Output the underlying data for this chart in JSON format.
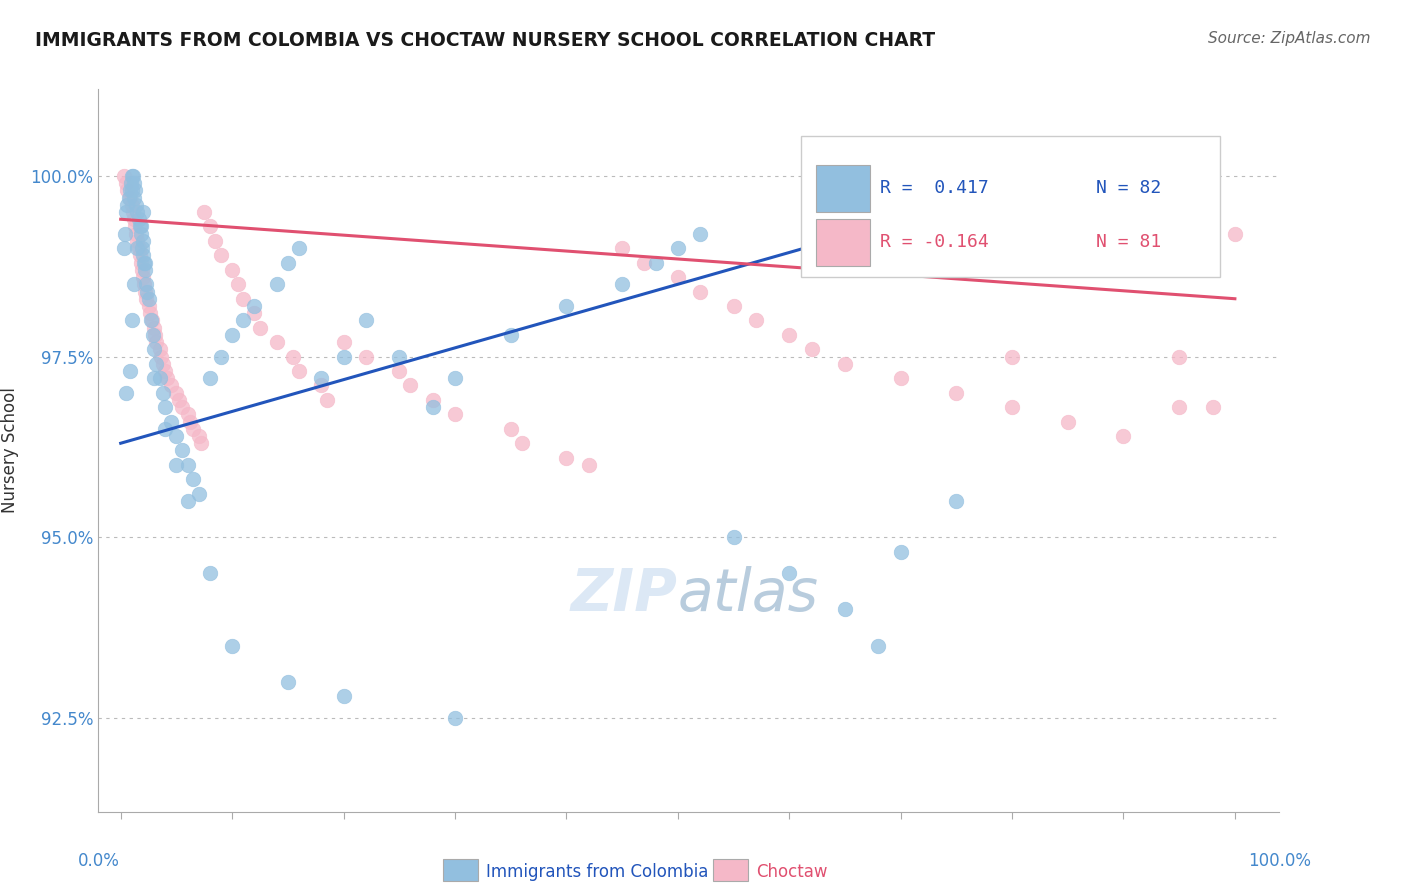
{
  "title": "IMMIGRANTS FROM COLOMBIA VS CHOCTAW NURSERY SCHOOL CORRELATION CHART",
  "source": "Source: ZipAtlas.com",
  "ylabel": "Nursery School",
  "ytick_labels": [
    "92.5%",
    "95.0%",
    "97.5%",
    "100.0%"
  ],
  "ytick_values": [
    92.5,
    95.0,
    97.5,
    100.0
  ],
  "ymin": 91.2,
  "ymax": 101.2,
  "xmin": -2.0,
  "xmax": 104.0,
  "legend_r1": "R =  0.417",
  "legend_n1": "N = 82",
  "legend_r2": "R = -0.164",
  "legend_n2": "N = 81",
  "blue_color": "#92bfdf",
  "pink_color": "#f5b8c8",
  "blue_line_color": "#2255bb",
  "pink_line_color": "#e05070",
  "title_color": "#1a1a1a",
  "axis_label_color": "#4488cc",
  "watermark_color": "#dce8f5",
  "background_color": "#ffffff",
  "blue_scatter": {
    "x": [
      0.3,
      0.4,
      0.5,
      0.6,
      0.7,
      0.8,
      0.9,
      1.0,
      1.0,
      1.1,
      1.2,
      1.2,
      1.3,
      1.4,
      1.5,
      1.6,
      1.7,
      1.8,
      1.9,
      2.0,
      2.0,
      2.1,
      2.2,
      2.3,
      2.4,
      2.5,
      2.7,
      2.9,
      3.0,
      3.2,
      3.5,
      3.8,
      4.0,
      4.5,
      5.0,
      5.5,
      6.0,
      6.5,
      7.0,
      8.0,
      9.0,
      10.0,
      11.0,
      12.0,
      14.0,
      15.0,
      16.0,
      18.0,
      20.0,
      22.0,
      25.0,
      28.0,
      30.0,
      35.0,
      40.0,
      45.0,
      48.0,
      50.0,
      52.0,
      55.0,
      60.0,
      65.0,
      68.0,
      70.0,
      75.0,
      0.5,
      0.8,
      1.0,
      1.2,
      1.5,
      1.8,
      2.0,
      2.2,
      3.0,
      4.0,
      5.0,
      6.0,
      8.0,
      10.0,
      15.0,
      20.0,
      30.0
    ],
    "y": [
      99.0,
      99.2,
      99.5,
      99.6,
      99.7,
      99.8,
      99.9,
      100.0,
      99.8,
      100.0,
      99.9,
      99.7,
      99.8,
      99.6,
      99.5,
      99.4,
      99.3,
      99.2,
      99.0,
      98.9,
      99.1,
      98.8,
      98.7,
      98.5,
      98.4,
      98.3,
      98.0,
      97.8,
      97.6,
      97.4,
      97.2,
      97.0,
      96.8,
      96.6,
      96.4,
      96.2,
      96.0,
      95.8,
      95.6,
      97.2,
      97.5,
      97.8,
      98.0,
      98.2,
      98.5,
      98.8,
      99.0,
      97.2,
      97.5,
      98.0,
      97.5,
      96.8,
      97.2,
      97.8,
      98.2,
      98.5,
      98.8,
      99.0,
      99.2,
      95.0,
      94.5,
      94.0,
      93.5,
      94.8,
      95.5,
      97.0,
      97.3,
      98.0,
      98.5,
      99.0,
      99.3,
      99.5,
      98.8,
      97.2,
      96.5,
      96.0,
      95.5,
      94.5,
      93.5,
      93.0,
      92.8,
      92.5
    ]
  },
  "pink_scatter": {
    "x": [
      0.3,
      0.5,
      0.6,
      0.8,
      1.0,
      1.1,
      1.2,
      1.3,
      1.4,
      1.5,
      1.6,
      1.7,
      1.8,
      1.9,
      2.0,
      2.1,
      2.2,
      2.3,
      2.5,
      2.6,
      2.8,
      3.0,
      3.1,
      3.2,
      3.5,
      3.6,
      3.8,
      4.0,
      4.2,
      4.5,
      5.0,
      5.2,
      5.5,
      6.0,
      6.2,
      6.5,
      7.0,
      7.2,
      7.5,
      8.0,
      8.5,
      9.0,
      10.0,
      10.5,
      11.0,
      12.0,
      12.5,
      14.0,
      15.5,
      16.0,
      18.0,
      18.5,
      20.0,
      22.0,
      25.0,
      26.0,
      28.0,
      30.0,
      35.0,
      36.0,
      40.0,
      42.0,
      45.0,
      47.0,
      50.0,
      52.0,
      55.0,
      57.0,
      60.0,
      62.0,
      65.0,
      70.0,
      75.0,
      80.0,
      85.0,
      90.0,
      95.0,
      98.0,
      100.0,
      80.0,
      95.0
    ],
    "y": [
      100.0,
      99.9,
      99.8,
      99.7,
      99.6,
      99.5,
      99.4,
      99.3,
      99.2,
      99.1,
      99.0,
      98.9,
      98.8,
      98.7,
      98.6,
      98.5,
      98.4,
      98.3,
      98.2,
      98.1,
      98.0,
      97.9,
      97.8,
      97.7,
      97.6,
      97.5,
      97.4,
      97.3,
      97.2,
      97.1,
      97.0,
      96.9,
      96.8,
      96.7,
      96.6,
      96.5,
      96.4,
      96.3,
      99.5,
      99.3,
      99.1,
      98.9,
      98.7,
      98.5,
      98.3,
      98.1,
      97.9,
      97.7,
      97.5,
      97.3,
      97.1,
      96.9,
      97.7,
      97.5,
      97.3,
      97.1,
      96.9,
      96.7,
      96.5,
      96.3,
      96.1,
      96.0,
      99.0,
      98.8,
      98.6,
      98.4,
      98.2,
      98.0,
      97.8,
      97.6,
      97.4,
      97.2,
      97.0,
      96.8,
      96.6,
      96.4,
      97.5,
      96.8,
      99.2,
      97.5,
      96.8
    ]
  },
  "blue_trendline": {
    "x_start": 0.0,
    "x_end": 75.0,
    "y_start": 96.3,
    "y_end": 99.6
  },
  "pink_trendline": {
    "x_start": 0.0,
    "x_end": 100.0,
    "y_start": 99.4,
    "y_end": 98.3
  }
}
